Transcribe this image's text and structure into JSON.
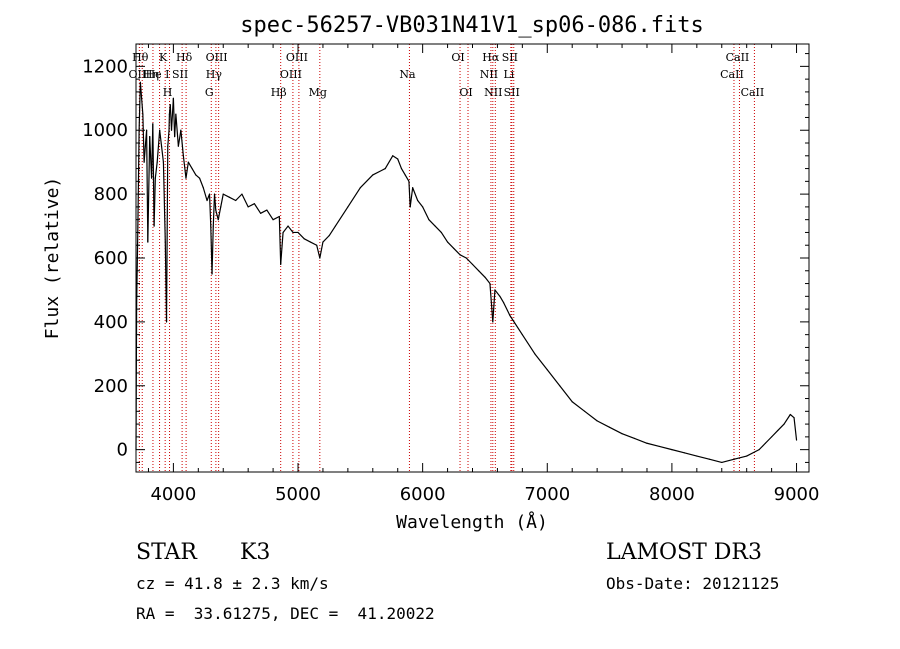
{
  "chart_data": {
    "type": "line",
    "title": "spec-56257-VB031N41V1_sp06-086.fits",
    "xlabel": "Wavelength (Å)",
    "ylabel": "Flux (relative)",
    "xlim": [
      3700,
      9100
    ],
    "ylim": [
      -70,
      1270
    ],
    "xticks": [
      4000,
      5000,
      6000,
      7000,
      8000,
      9000
    ],
    "yticks": [
      0,
      200,
      400,
      600,
      800,
      1000,
      1200
    ],
    "series": [
      {
        "name": "flux",
        "x": [
          3700,
          3705,
          3715,
          3725,
          3735,
          3745,
          3755,
          3765,
          3775,
          3785,
          3795,
          3810,
          3825,
          3835,
          3845,
          3855,
          3870,
          3890,
          3905,
          3920,
          3935,
          3945,
          3955,
          3965,
          3968,
          3975,
          3985,
          4000,
          4010,
          4020,
          4040,
          4060,
          4080,
          4101,
          4120,
          4150,
          4180,
          4210,
          4240,
          4270,
          4290,
          4300,
          4310,
          4320,
          4330,
          4340,
          4360,
          4380,
          4400,
          4450,
          4500,
          4550,
          4600,
          4650,
          4700,
          4750,
          4800,
          4850,
          4861,
          4880,
          4920,
          4960,
          5000,
          5050,
          5100,
          5150,
          5175,
          5200,
          5250,
          5300,
          5400,
          5500,
          5600,
          5700,
          5760,
          5800,
          5830,
          5860,
          5890,
          5900,
          5920,
          5960,
          6000,
          6050,
          6100,
          6150,
          6200,
          6250,
          6300,
          6350,
          6400,
          6450,
          6500,
          6540,
          6563,
          6580,
          6620,
          6650,
          6700,
          6800,
          6900,
          7000,
          7100,
          7200,
          7300,
          7400,
          7500,
          7600,
          7700,
          7800,
          7900,
          8000,
          8100,
          8200,
          8300,
          8400,
          8500,
          8600,
          8700,
          8750,
          8800,
          8850,
          8900,
          8950,
          8980,
          9000
        ],
        "y": [
          0,
          450,
          700,
          1000,
          1150,
          1100,
          1050,
          900,
          950,
          1000,
          650,
          980,
          850,
          1020,
          700,
          850,
          900,
          1000,
          950,
          900,
          650,
          400,
          950,
          1000,
          1050,
          1080,
          1000,
          1100,
          980,
          1050,
          950,
          1000,
          920,
          850,
          900,
          880,
          860,
          850,
          820,
          780,
          800,
          700,
          550,
          700,
          800,
          750,
          720,
          760,
          800,
          790,
          780,
          800,
          760,
          770,
          740,
          750,
          720,
          730,
          580,
          680,
          700,
          680,
          680,
          660,
          650,
          640,
          600,
          650,
          670,
          700,
          760,
          820,
          860,
          880,
          920,
          910,
          880,
          860,
          840,
          760,
          820,
          780,
          760,
          720,
          700,
          680,
          650,
          630,
          610,
          600,
          580,
          560,
          540,
          520,
          400,
          500,
          480,
          460,
          420,
          360,
          300,
          250,
          200,
          150,
          120,
          90,
          70,
          50,
          35,
          20,
          10,
          0,
          -10,
          -20,
          -30,
          -40,
          -30,
          -20,
          0,
          20,
          40,
          60,
          80,
          110,
          100,
          30
        ]
      }
    ],
    "line_markers": [
      {
        "label": "OII",
        "wavelength": 3727,
        "row": 2
      },
      {
        "label": "Hθ",
        "wavelength": 3750,
        "row": 1
      },
      {
        "label": "Hη",
        "wavelength": 3836,
        "row": 2
      },
      {
        "label": "He I",
        "wavelength": 3889,
        "row": 2
      },
      {
        "label": "K",
        "wavelength": 3934,
        "row": 1
      },
      {
        "label": "H",
        "wavelength": 3969,
        "row": 3
      },
      {
        "label": "SII",
        "wavelength": 4070,
        "row": 2
      },
      {
        "label": "Hδ",
        "wavelength": 4102,
        "row": 1
      },
      {
        "label": "G",
        "wavelength": 4304,
        "row": 3
      },
      {
        "label": "Hγ",
        "wavelength": 4341,
        "row": 2
      },
      {
        "label": "OIII",
        "wavelength": 4363,
        "row": 1
      },
      {
        "label": "Hβ",
        "wavelength": 4861,
        "row": 3
      },
      {
        "label": "OIII",
        "wavelength": 4959,
        "row": 2
      },
      {
        "label": "OIII",
        "wavelength": 5007,
        "row": 1
      },
      {
        "label": "Mg",
        "wavelength": 5175,
        "row": 3
      },
      {
        "label": "Na",
        "wavelength": 5894,
        "row": 2
      },
      {
        "label": "OI",
        "wavelength": 6300,
        "row": 1
      },
      {
        "label": "OI",
        "wavelength": 6364,
        "row": 3
      },
      {
        "label": "NII",
        "wavelength": 6548,
        "row": 2
      },
      {
        "label": "Hα",
        "wavelength": 6563,
        "row": 1
      },
      {
        "label": "NII",
        "wavelength": 6583,
        "row": 3
      },
      {
        "label": "Li",
        "wavelength": 6708,
        "row": 2
      },
      {
        "label": "SII",
        "wavelength": 6716,
        "row": 1
      },
      {
        "label": "SII",
        "wavelength": 6731,
        "row": 3
      },
      {
        "label": "CaII",
        "wavelength": 8498,
        "row": 2
      },
      {
        "label": "CaII",
        "wavelength": 8542,
        "row": 1
      },
      {
        "label": "CaII",
        "wavelength": 8662,
        "row": 3
      }
    ],
    "marker_color": "#cc0000",
    "line_color": "#000000"
  },
  "info": {
    "class_label": "STAR",
    "subclass": "K3",
    "survey": "LAMOST DR3",
    "redshift": "cz = 41.8 ± 2.3 km/s",
    "obs_date": "Obs-Date: 20121125",
    "coords": "RA =  33.61275, DEC =  41.20022"
  }
}
